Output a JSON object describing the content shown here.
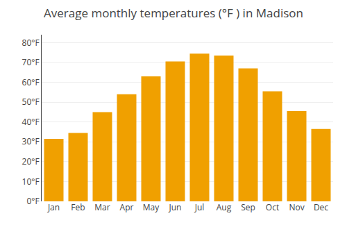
{
  "chart_data": {
    "type": "bar",
    "title": "Average monthly temperatures (°F ) in Madison",
    "categories": [
      "Jan",
      "Feb",
      "Mar",
      "Apr",
      "May",
      "Jun",
      "Jul",
      "Aug",
      "Sep",
      "Oct",
      "Nov",
      "Dec"
    ],
    "values": [
      31.5,
      34.5,
      45.0,
      54.0,
      63.0,
      70.5,
      74.5,
      73.5,
      67.0,
      55.5,
      45.5,
      36.5
    ],
    "color": "#F0A000",
    "ylim": [
      0,
      84
    ],
    "yticks": [
      {
        "value": 0,
        "label": "0°F"
      },
      {
        "value": 10,
        "label": "10°F"
      },
      {
        "value": 20,
        "label": "20°F"
      },
      {
        "value": 30,
        "label": "30°F"
      },
      {
        "value": 40,
        "label": "40°F"
      },
      {
        "value": 50,
        "label": "50°F"
      },
      {
        "value": 60,
        "label": "60°F"
      },
      {
        "value": 70,
        "label": "70°F"
      },
      {
        "value": 80,
        "label": "80°F"
      }
    ],
    "grid": true
  }
}
